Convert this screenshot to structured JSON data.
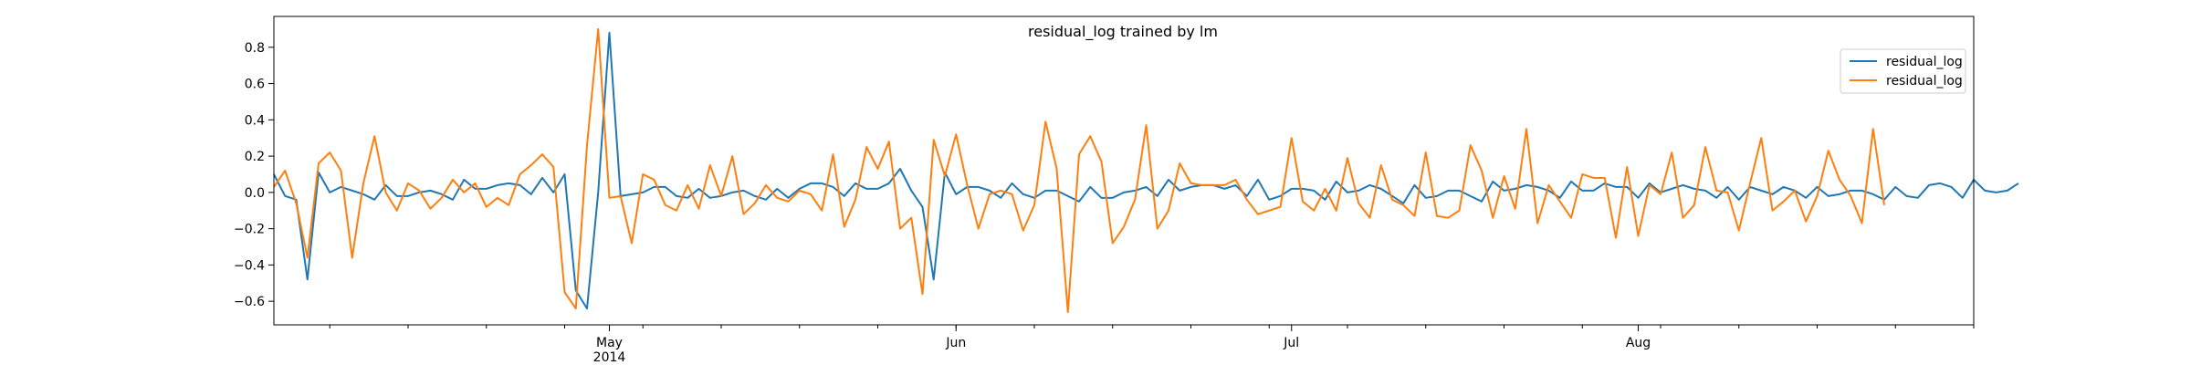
{
  "chart_data": {
    "type": "line",
    "title": "residual_log trained by lm",
    "xlabel": "",
    "ylabel": "",
    "x_range": [
      "2014-04-01",
      "2014-08-31"
    ],
    "ylim": [
      -0.73,
      0.97
    ],
    "y_ticks": [
      -0.6,
      -0.4,
      -0.2,
      0.0,
      0.2,
      0.4,
      0.6,
      0.8
    ],
    "y_tick_labels": [
      "−0.6",
      "−0.4",
      "−0.2",
      "0.0",
      "0.2",
      "0.4",
      "0.6",
      "0.8"
    ],
    "x_ticks": [
      {
        "date": "2014-05-01",
        "label": "May",
        "sublabel": "2014"
      },
      {
        "date": "2014-06-01",
        "label": "Jun",
        "sublabel": ""
      },
      {
        "date": "2014-07-01",
        "label": "Jul",
        "sublabel": ""
      },
      {
        "date": "2014-08-01",
        "label": "Aug",
        "sublabel": ""
      }
    ],
    "grid": false,
    "legend_position": "top-right",
    "x_start": "2014-04-01",
    "x_step_days": 1,
    "series": [
      {
        "name": "residual_log",
        "color": "#1f77b4",
        "values": [
          0.1,
          -0.02,
          -0.04,
          -0.48,
          0.11,
          0.0,
          0.03,
          0.01,
          -0.01,
          -0.04,
          0.04,
          -0.02,
          -0.02,
          0.0,
          0.01,
          -0.01,
          -0.04,
          0.07,
          0.02,
          0.02,
          0.04,
          0.05,
          0.04,
          -0.01,
          0.08,
          0.0,
          0.1,
          -0.54,
          -0.64,
          0.0,
          0.88,
          -0.02,
          -0.01,
          0.0,
          0.03,
          0.03,
          -0.02,
          -0.03,
          0.02,
          -0.03,
          -0.02,
          0.0,
          0.01,
          -0.02,
          -0.04,
          0.02,
          -0.03,
          0.02,
          0.05,
          0.05,
          0.03,
          -0.02,
          0.05,
          0.02,
          0.02,
          0.05,
          0.13,
          0.01,
          -0.08,
          -0.48,
          0.11,
          -0.01,
          0.03,
          0.03,
          0.01,
          -0.03,
          0.05,
          -0.01,
          -0.03,
          0.01,
          0.01,
          -0.02,
          -0.05,
          0.03,
          -0.03,
          -0.03,
          0.0,
          0.01,
          0.03,
          -0.02,
          0.07,
          0.01,
          0.03,
          0.04,
          0.04,
          0.02,
          0.04,
          -0.02,
          0.07,
          -0.04,
          -0.02,
          0.02,
          0.02,
          0.01,
          -0.04,
          0.06,
          0.0,
          0.01,
          0.04,
          0.02,
          -0.02,
          -0.06,
          0.04,
          -0.03,
          -0.02,
          0.01,
          0.01,
          -0.02,
          -0.05,
          0.06,
          0.01,
          0.02,
          0.04,
          0.03,
          0.01,
          -0.03,
          0.06,
          0.01,
          0.01,
          0.05,
          0.03,
          0.03,
          -0.03,
          0.05,
          0.0,
          0.02,
          0.04,
          0.02,
          0.01,
          -0.03,
          0.03,
          -0.04,
          0.03,
          0.01,
          -0.01,
          0.03,
          0.01,
          -0.03,
          0.03,
          -0.02,
          -0.01,
          0.01,
          0.01,
          -0.01,
          -0.04,
          0.03,
          -0.02,
          -0.03,
          0.04,
          0.05,
          0.03,
          -0.03,
          0.07,
          0.01,
          0.0,
          0.01,
          0.05
        ]
      },
      {
        "name": "residual_log",
        "color": "#ff7f0e",
        "values": [
          0.03,
          0.12,
          -0.06,
          -0.36,
          0.16,
          0.22,
          0.12,
          -0.36,
          0.05,
          0.31,
          0.0,
          -0.1,
          0.05,
          0.01,
          -0.09,
          -0.03,
          0.07,
          0.0,
          0.05,
          -0.08,
          -0.03,
          -0.07,
          0.1,
          0.15,
          0.21,
          0.14,
          -0.55,
          -0.64,
          0.26,
          0.9,
          -0.03,
          -0.02,
          -0.28,
          0.1,
          0.07,
          -0.07,
          -0.1,
          0.04,
          -0.09,
          0.15,
          -0.02,
          0.2,
          -0.12,
          -0.06,
          0.04,
          -0.03,
          -0.05,
          0.01,
          -0.01,
          -0.1,
          0.21,
          -0.19,
          -0.04,
          0.25,
          0.13,
          0.28,
          -0.2,
          -0.14,
          -0.56,
          0.29,
          0.09,
          0.32,
          0.04,
          -0.2,
          -0.01,
          0.01,
          -0.01,
          -0.21,
          -0.07,
          0.39,
          0.13,
          -0.66,
          0.21,
          0.31,
          0.17,
          -0.28,
          -0.19,
          -0.04,
          0.37,
          -0.2,
          -0.1,
          0.16,
          0.05,
          0.04,
          0.04,
          0.04,
          0.07,
          -0.04,
          -0.12,
          -0.1,
          -0.08,
          0.3,
          -0.05,
          -0.1,
          0.02,
          -0.1,
          0.19,
          -0.06,
          -0.14,
          0.15,
          -0.04,
          -0.07,
          -0.13,
          0.22,
          -0.13,
          -0.14,
          -0.1,
          0.26,
          0.12,
          -0.14,
          0.09,
          -0.09,
          0.35,
          -0.17,
          0.04,
          -0.05,
          -0.14,
          0.1,
          0.08,
          0.08,
          -0.25,
          0.14,
          -0.24,
          0.04,
          -0.01,
          0.22,
          -0.14,
          -0.07,
          0.25,
          0.01,
          0.0,
          -0.21,
          0.05,
          0.3,
          -0.1,
          -0.05,
          0.01,
          -0.16,
          -0.02,
          0.23,
          0.07,
          -0.02,
          -0.17,
          0.35,
          -0.07
        ]
      }
    ]
  }
}
